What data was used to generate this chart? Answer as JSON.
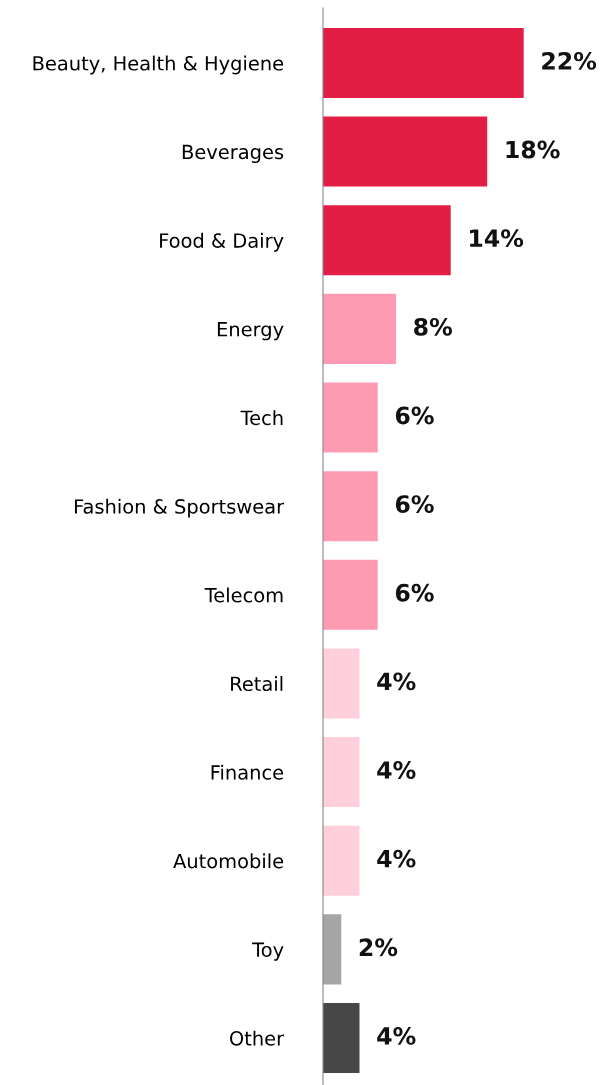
{
  "chart_data": {
    "type": "bar",
    "orientation": "horizontal",
    "categories": [
      "Beauty, Health & Hygiene",
      "Beverages",
      "Food & Dairy",
      "Energy",
      "Tech",
      "Fashion & Sportswear",
      "Telecom",
      "Retail",
      "Finance",
      "Automobile",
      "Toy",
      "Other"
    ],
    "values": [
      22,
      18,
      14,
      8,
      6,
      6,
      6,
      4,
      4,
      4,
      2,
      4
    ],
    "colors": [
      "#e31e45",
      "#e31e45",
      "#e31e45",
      "#ff9ab3",
      "#ff9ab3",
      "#ff9ab3",
      "#ff9ab3",
      "#ffd0dc",
      "#ffd0dc",
      "#ffd0dc",
      "#a6a6a6",
      "#474747"
    ],
    "value_labels": [
      "22%",
      "18%",
      "14%",
      "8%",
      "6%",
      "6%",
      "6%",
      "4%",
      "4%",
      "4%",
      "2%",
      "4%"
    ],
    "tick_labels": "y",
    "grid": false
  }
}
